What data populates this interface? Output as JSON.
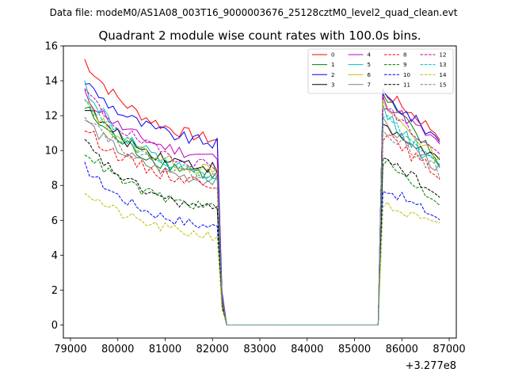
{
  "chart_data": {
    "type": "line",
    "suptitle": "Data file: modeM0/AS1A08_003T16_9000003676_25128cztM0_level2_quad_clean.evt",
    "title": "Quadrant 2 module wise count rates with 100.0s bins.",
    "xlabel": "",
    "ylabel": "",
    "x_offset_label": "+3.277e8",
    "xlim": [
      79000,
      87000
    ],
    "ylim": [
      0,
      16
    ],
    "x_ticks": [
      79000,
      80000,
      81000,
      82000,
      83000,
      84000,
      85000,
      86000,
      87000
    ],
    "x_tick_labels": [
      "79000",
      "80000",
      "81000",
      "82000",
      "83000",
      "84000",
      "85000",
      "86000",
      "87000"
    ],
    "y_ticks": [
      0,
      2,
      4,
      6,
      8,
      10,
      12,
      14,
      16
    ],
    "y_tick_labels": [
      "0",
      "2",
      "4",
      "6",
      "8",
      "10",
      "12",
      "14",
      "16"
    ],
    "x_start": 79300,
    "bin": 100,
    "n_bins": 76,
    "segment_a": [
      0,
      28
    ],
    "segment_b": [
      63,
      75
    ],
    "legend_position": "top-right",
    "series": [
      {
        "name": "0",
        "color": "#ff0000",
        "dash": "solid",
        "start": 15.2,
        "end_a": 10.6,
        "start_b": 13.4,
        "end_b": 10.9,
        "noise": 0.35
      },
      {
        "name": "1",
        "color": "#008000",
        "dash": "solid",
        "start": 12.5,
        "end_a": 8.6,
        "start_b": 13.1,
        "end_b": 9.3,
        "noise": 0.4
      },
      {
        "name": "2",
        "color": "#0000ff",
        "dash": "solid",
        "start": 14.0,
        "end_a": 10.4,
        "start_b": 13.2,
        "end_b": 10.6,
        "noise": 0.35
      },
      {
        "name": "3",
        "color": "#000000",
        "dash": "solid",
        "start": 12.6,
        "end_a": 9.0,
        "start_b": 11.3,
        "end_b": 9.5,
        "noise": 0.35
      },
      {
        "name": "4",
        "color": "#bf00bf",
        "dash": "solid",
        "start": 13.2,
        "end_a": 9.6,
        "start_b": 12.9,
        "end_b": 10.3,
        "noise": 0.35
      },
      {
        "name": "5",
        "color": "#00bfbf",
        "dash": "solid",
        "start": 13.8,
        "end_a": 8.3,
        "start_b": 12.3,
        "end_b": 8.8,
        "noise": 0.45
      },
      {
        "name": "6",
        "color": "#bfbf00",
        "dash": "solid",
        "start": 12.8,
        "end_a": 8.8,
        "start_b": 12.6,
        "end_b": 9.4,
        "noise": 0.35
      },
      {
        "name": "7",
        "color": "#808080",
        "dash": "solid",
        "start": 11.8,
        "end_a": 8.2,
        "start_b": 11.6,
        "end_b": 8.9,
        "noise": 0.35
      },
      {
        "name": "8",
        "color": "#ff0000",
        "dash": "dashed",
        "start": 11.3,
        "end_a": 8.1,
        "start_b": 10.9,
        "end_b": 8.6,
        "noise": 0.35
      },
      {
        "name": "9",
        "color": "#008000",
        "dash": "dashed",
        "start": 10.0,
        "end_a": 6.7,
        "start_b": 9.4,
        "end_b": 7.0,
        "noise": 0.3
      },
      {
        "name": "10",
        "color": "#0000ff",
        "dash": "dashed",
        "start": 9.1,
        "end_a": 5.6,
        "start_b": 7.9,
        "end_b": 6.1,
        "noise": 0.3
      },
      {
        "name": "11",
        "color": "#000000",
        "dash": "dashed",
        "start": 10.5,
        "end_a": 6.6,
        "start_b": 9.8,
        "end_b": 7.3,
        "noise": 0.3
      },
      {
        "name": "12",
        "color": "#bf00bf",
        "dash": "dashed",
        "start": 13.5,
        "end_a": 9.1,
        "start_b": 12.6,
        "end_b": 9.7,
        "noise": 0.35
      },
      {
        "name": "13",
        "color": "#00bfbf",
        "dash": "dashed",
        "start": 13.0,
        "end_a": 8.6,
        "start_b": 12.1,
        "end_b": 9.0,
        "noise": 0.35
      },
      {
        "name": "14",
        "color": "#bfbf00",
        "dash": "dashed",
        "start": 7.7,
        "end_a": 5.1,
        "start_b": 6.9,
        "end_b": 5.6,
        "noise": 0.3
      },
      {
        "name": "15",
        "color": "#808080",
        "dash": "dashed",
        "start": 12.2,
        "end_a": 8.4,
        "start_b": 11.3,
        "end_b": 8.7,
        "noise": 0.35
      }
    ]
  }
}
